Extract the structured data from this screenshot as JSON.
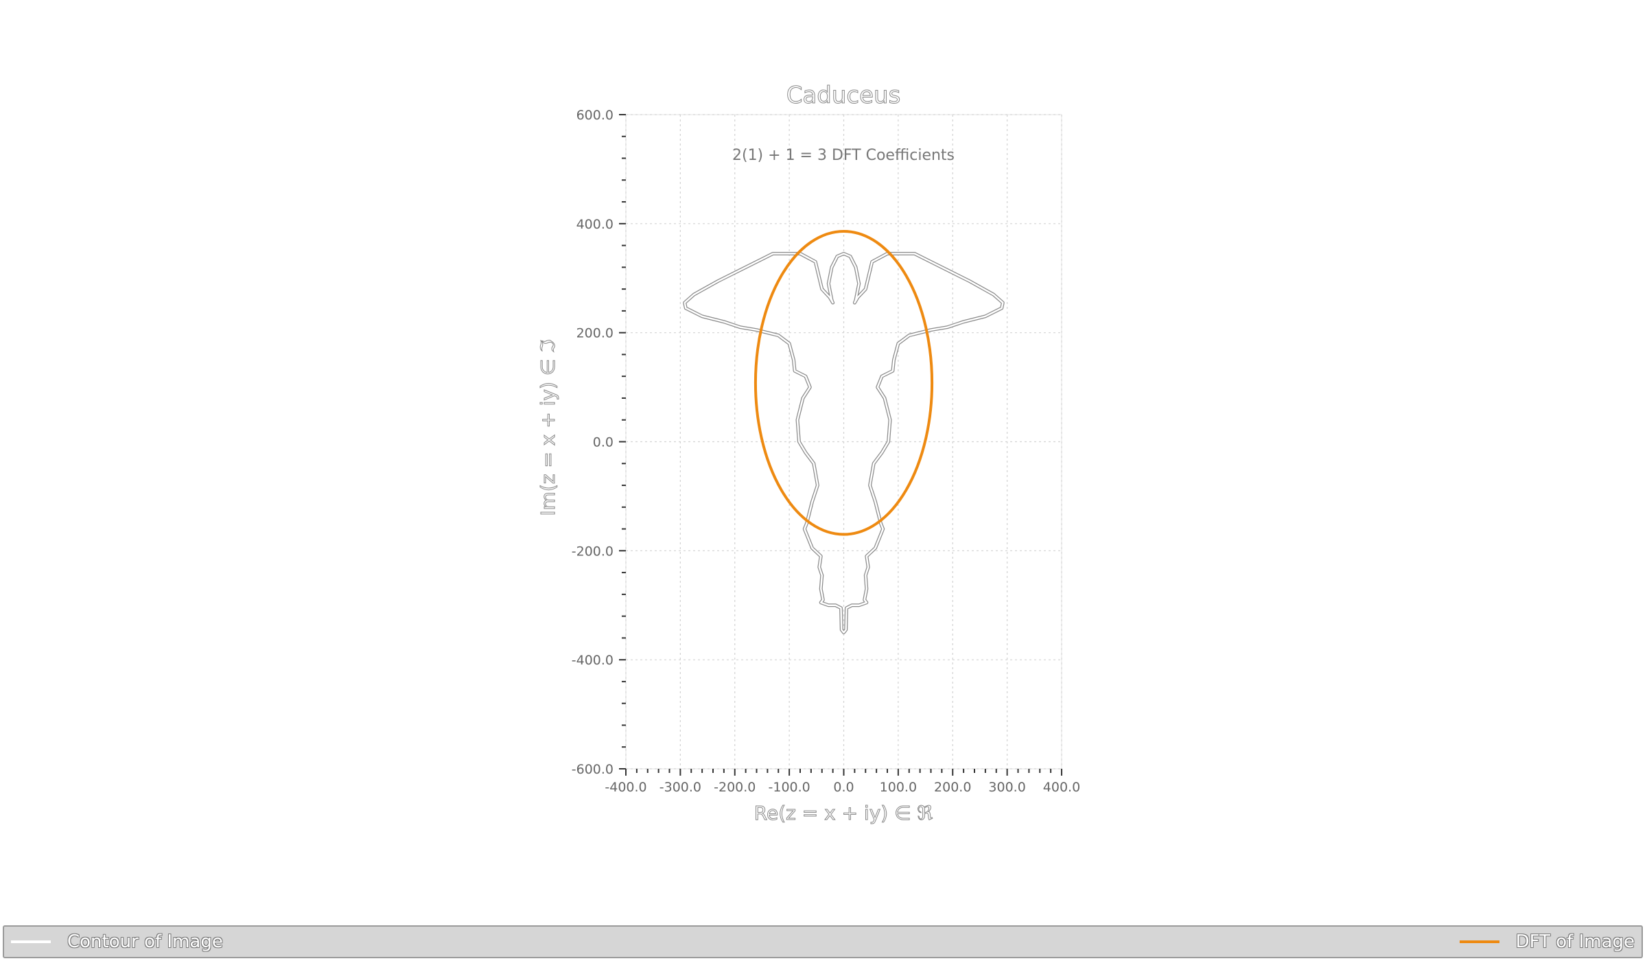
{
  "chart_data": {
    "type": "line",
    "title": "Caduceus",
    "subtitle": "2(1) + 1 = 3 DFT Coefficients",
    "xlabel": "Re(z = x + iy) ∈ ℜ",
    "ylabel": "Im(z = x + iy) ∈ ℑ",
    "xlim": [
      -400,
      400
    ],
    "ylim": [
      -600,
      600
    ],
    "x_ticks": [
      -400,
      -300,
      -200,
      -100,
      0,
      100,
      200,
      300,
      400
    ],
    "x_tick_labels": [
      "-400.0",
      "-300.0",
      "-200.0",
      "-100.0",
      "0.0",
      "100.0",
      "200.0",
      "300.0",
      "400.0"
    ],
    "y_ticks": [
      -600,
      -400,
      -200,
      0,
      200,
      400,
      600
    ],
    "y_tick_labels": [
      "-600.0",
      "-400.0",
      "-200.0",
      "0.0",
      "200.0",
      "400.0",
      "600.0"
    ],
    "grid": true,
    "legend_position": "bottom",
    "series": [
      {
        "name": "Contour of Image",
        "color": "#ffffff",
        "outline": "#8a8a8a",
        "closed": true,
        "x": [
          0,
          12,
          22,
          28,
          22,
          20,
          26,
          40,
          52,
          80,
          130,
          180,
          230,
          275,
          292,
          290,
          260,
          220,
          190,
          160,
          140,
          120,
          100,
          92,
          90,
          70,
          62,
          75,
          85,
          82,
          70,
          55,
          48,
          58,
          68,
          72,
          58,
          42,
          45,
          40,
          42,
          38,
          42,
          28,
          15,
          5,
          4,
          0,
          -4,
          -5,
          -15,
          -28,
          -42,
          -38,
          -42,
          -40,
          -45,
          -42,
          -58,
          -72,
          -68,
          -58,
          -48,
          -55,
          -70,
          -82,
          -85,
          -75,
          -62,
          -70,
          -90,
          -92,
          -100,
          -120,
          -140,
          -160,
          -190,
          -220,
          -260,
          -290,
          -292,
          -275,
          -230,
          -180,
          -130,
          -80,
          -52,
          -40,
          -26,
          -20,
          -22,
          -28,
          -22,
          -12
        ],
        "y": [
          345,
          340,
          320,
          290,
          260,
          255,
          265,
          280,
          330,
          345,
          345,
          320,
          295,
          270,
          255,
          245,
          230,
          220,
          210,
          205,
          200,
          195,
          180,
          150,
          130,
          120,
          100,
          80,
          40,
          0,
          -20,
          -40,
          -80,
          -110,
          -150,
          -160,
          -195,
          -210,
          -230,
          -245,
          -270,
          -290,
          -295,
          -300,
          -300,
          -305,
          -345,
          -350,
          -345,
          -305,
          -300,
          -300,
          -295,
          -290,
          -270,
          -245,
          -230,
          -210,
          -195,
          -160,
          -150,
          -110,
          -80,
          -40,
          -20,
          0,
          40,
          80,
          100,
          120,
          130,
          150,
          180,
          195,
          200,
          205,
          210,
          220,
          230,
          245,
          255,
          270,
          295,
          320,
          345,
          345,
          330,
          280,
          265,
          255,
          260,
          290,
          320,
          340
        ]
      },
      {
        "name": "DFT of Image",
        "color": "#ee8a11",
        "closed": true,
        "ellipse": {
          "cx": 0,
          "cy": 108,
          "rx": 162,
          "ry": 278
        }
      }
    ]
  },
  "legend": {
    "left_label": "Contour of Image",
    "right_label": "DFT of Image"
  }
}
